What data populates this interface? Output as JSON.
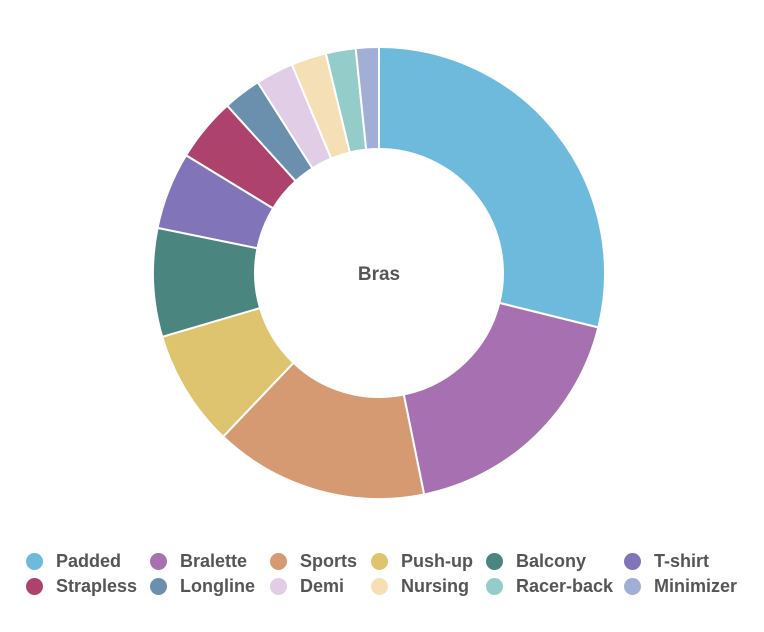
{
  "chart_data": {
    "type": "pie",
    "variant": "donut",
    "center_label": "Bras",
    "legend_position": "bottom",
    "categories": [
      "Padded",
      "Bralette",
      "Sports",
      "Push-up",
      "Balcony",
      "T-shirt",
      "Strapless",
      "Longline",
      "Demi",
      "Nursing",
      "Racer-back",
      "Minimizer"
    ],
    "values": [
      29.8,
      18.5,
      15.8,
      8.6,
      8.0,
      5.7,
      4.7,
      2.8,
      2.8,
      2.6,
      2.2,
      1.7
    ],
    "colors": [
      "#6dbadd",
      "#a670b1",
      "#d59a72",
      "#dfc46f",
      "#4b8580",
      "#8174b9",
      "#ad436c",
      "#6a90ad",
      "#e2cde6",
      "#f5e0b5",
      "#93ccc9",
      "#a1aed6"
    ]
  }
}
